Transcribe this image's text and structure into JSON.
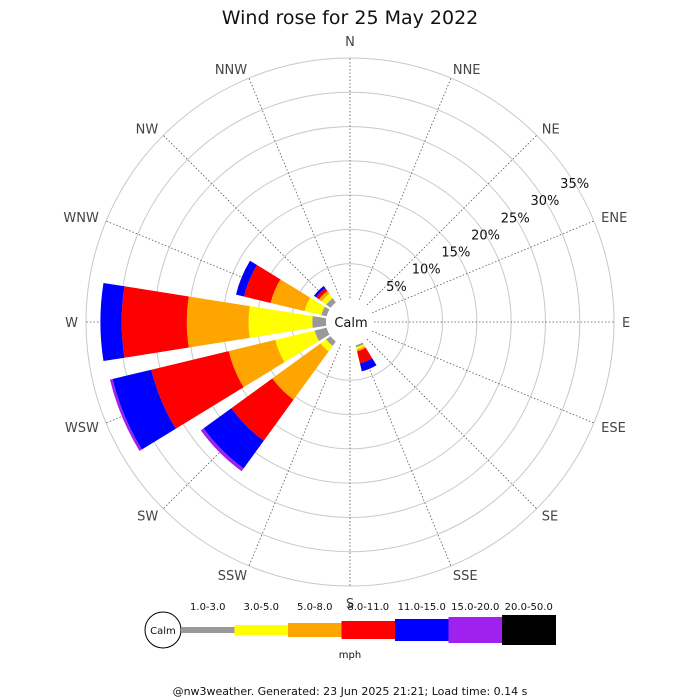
{
  "chart_data": {
    "type": "windrose",
    "title": "Wind rose for 25 May 2022",
    "unit": "mph",
    "calm_label": "Calm",
    "directions": [
      "N",
      "NNE",
      "NE",
      "ENE",
      "E",
      "ESE",
      "SE",
      "SSE",
      "S",
      "SSW",
      "SW",
      "WSW",
      "W",
      "WNW",
      "NW",
      "NNW"
    ],
    "ring_labels": [
      "5%",
      "10%",
      "15%",
      "20%",
      "25%",
      "30%",
      "35%"
    ],
    "rings": [
      5,
      10,
      15,
      20,
      25,
      30,
      35
    ],
    "ring_max": 35,
    "bins": [
      {
        "label": "1.0-3.0",
        "color": "#999999"
      },
      {
        "label": "3.0-5.0",
        "color": "#ffff00"
      },
      {
        "label": "5.0-8.0",
        "color": "#ffa500"
      },
      {
        "label": "8.0-11.0",
        "color": "#ff0000"
      },
      {
        "label": "11.0-15.0",
        "color": "#0000ff"
      },
      {
        "label": "15.0-20.0",
        "color": "#a020f0"
      },
      {
        "label": "20.0-50.0",
        "color": "#000000"
      }
    ],
    "data": {
      "SSE": [
        0.3,
        0.3,
        0.3,
        1.8,
        1.2,
        0,
        0
      ],
      "SW": [
        0.8,
        1.0,
        8.7,
        7.4,
        5.0,
        0.5,
        0
      ],
      "WSW": [
        1.8,
        5.9,
        7.0,
        11.6,
        5.8,
        0.4,
        0
      ],
      "W": [
        2.0,
        9.3,
        9.0,
        9.5,
        3.1,
        0,
        0
      ],
      "WNW": [
        0.8,
        2.5,
        5.1,
        4.0,
        1.2,
        0,
        0
      ],
      "NW": [
        0.8,
        0.8,
        0.5,
        0.5,
        0.4,
        0,
        0
      ]
    }
  },
  "footer": "@nw3weather. Generated: 23 Jun 2025 21:21; Load time: 0.14 s"
}
